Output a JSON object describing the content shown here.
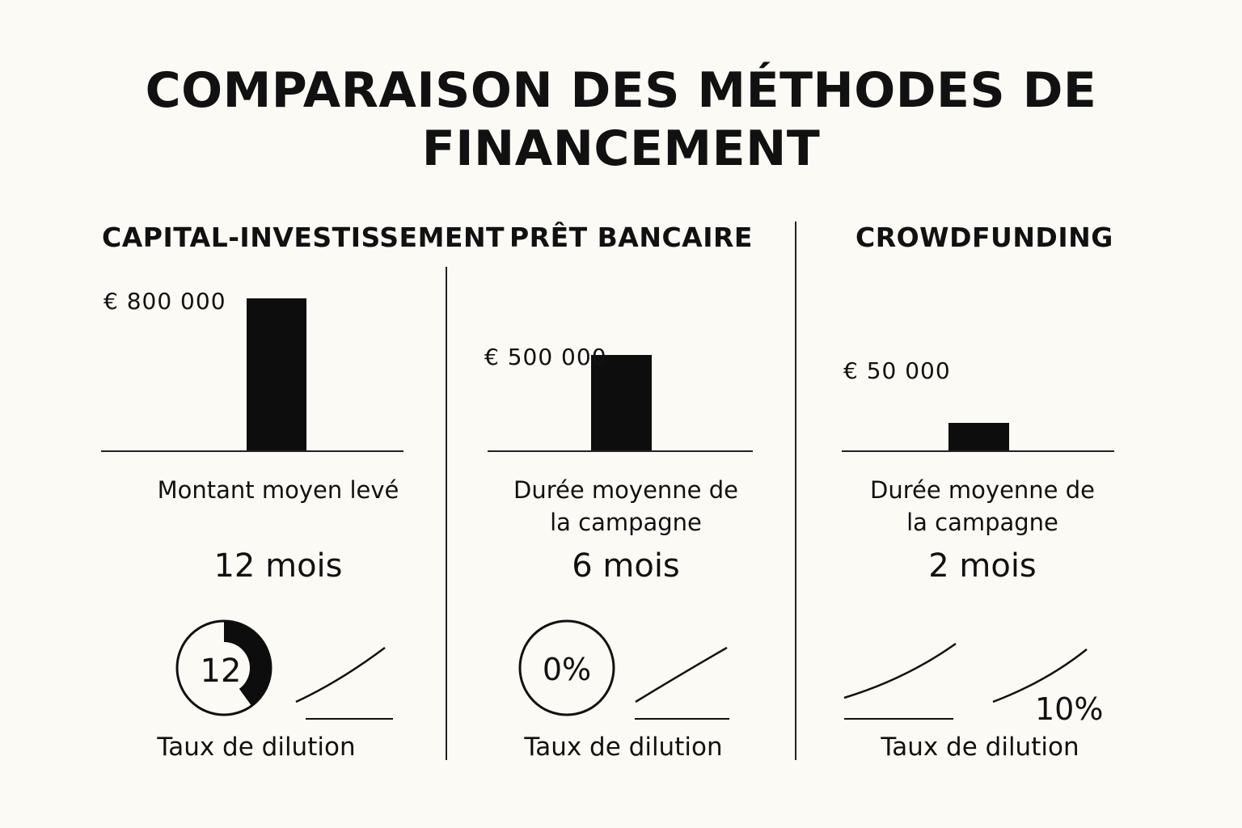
{
  "title_line1": "COMPARAISON DES MÉTHODES DE",
  "title_line2": "FINANCEMENT",
  "chart_data": {
    "type": "bar",
    "categories": [
      "CAPITAL-INVESTISSEMENT",
      "PRÊT BANCAIRE",
      "CROWDFUNDING"
    ],
    "values": [
      800000,
      500000,
      50000
    ],
    "value_labels": [
      "€ 800 000",
      "€ 500 000",
      "€ 50 000"
    ],
    "bar_color": "#0d0d0d",
    "metric_labels": [
      "Montant moyen levé",
      "Durée moyenne de la campagne",
      "Durée moyenne de la campagne"
    ],
    "metric_values": [
      "12 mois",
      "6 mois",
      "2 mois"
    ],
    "dilution_label": "Taux de dilution",
    "dilution_gauges": [
      "12",
      "0%"
    ],
    "dilution_gauge_fill": [
      0.4,
      0
    ],
    "dilution_crowdfunding": "10%"
  }
}
